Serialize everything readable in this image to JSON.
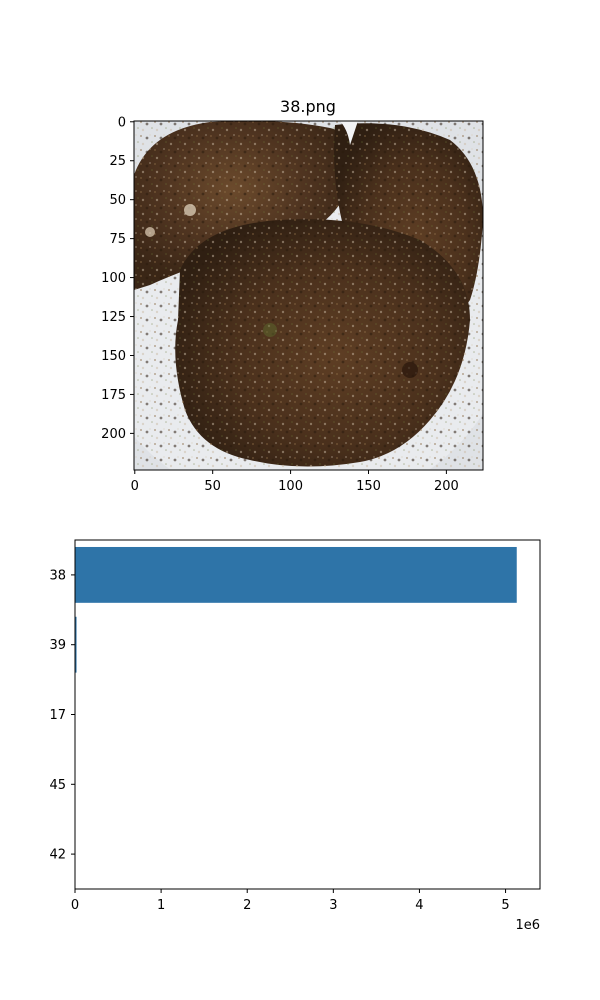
{
  "image_panel": {
    "title": "38.png",
    "x_ticks": [
      "0",
      "50",
      "100",
      "150",
      "200"
    ],
    "y_ticks": [
      "0",
      "25",
      "50",
      "75",
      "100",
      "125",
      "150",
      "175",
      "200"
    ],
    "xlim": [
      -0.5,
      223.5
    ],
    "ylim": [
      223.5,
      -0.5
    ]
  },
  "chart_data": {
    "type": "bar",
    "orientation": "horizontal",
    "categories": [
      "38",
      "39",
      "17",
      "45",
      "42"
    ],
    "values": [
      5130000,
      18000,
      0,
      0,
      0
    ],
    "xlim": [
      0,
      5400000
    ],
    "x_ticks": [
      0,
      1000000,
      2000000,
      3000000,
      4000000,
      5000000
    ],
    "x_tick_labels": [
      "0",
      "1",
      "2",
      "3",
      "4",
      "5"
    ],
    "x_offset_label": "1e6",
    "title": "",
    "xlabel": "",
    "ylabel": "",
    "bar_color": "#2e74a8"
  }
}
